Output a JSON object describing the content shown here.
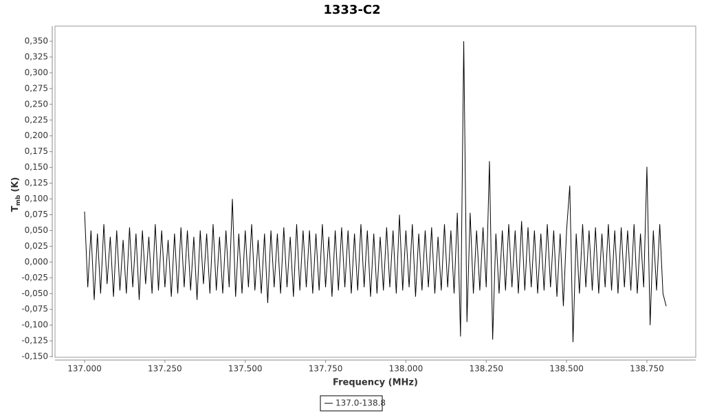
{
  "chart_data": {
    "type": "line",
    "title": "1333-C2",
    "x_label": "Frequency (MHz)",
    "y_label": "T",
    "y_label_sub": "mb",
    "y_label_unit": "(K)",
    "xlim": [
      136.908,
      138.902
    ],
    "ylim": [
      -0.151,
      0.374
    ],
    "xticks": [
      {
        "value": 137,
        "label": "137.000"
      },
      {
        "value": 137.25,
        "label": "137.250"
      },
      {
        "value": 137.5,
        "label": "137.500"
      },
      {
        "value": 137.75,
        "label": "137.750"
      },
      {
        "value": 138,
        "label": "138.000"
      },
      {
        "value": 138.25,
        "label": "138.250"
      },
      {
        "value": 138.5,
        "label": "138.500"
      },
      {
        "value": 138.75,
        "label": "138.750"
      }
    ],
    "yticks": [
      {
        "value": -0.15,
        "label": "-0,150"
      },
      {
        "value": -0.125,
        "label": "-0,125"
      },
      {
        "value": -0.1,
        "label": "-0,100"
      },
      {
        "value": -0.075,
        "label": "-0,075"
      },
      {
        "value": -0.05,
        "label": "-0,050"
      },
      {
        "value": -0.025,
        "label": "-0,025"
      },
      {
        "value": 0,
        "label": "0,000"
      },
      {
        "value": 0.025,
        "label": "0,025"
      },
      {
        "value": 0.05,
        "label": "0,050"
      },
      {
        "value": 0.075,
        "label": "0,075"
      },
      {
        "value": 0.1,
        "label": "0,100"
      },
      {
        "value": 0.125,
        "label": "0,125"
      },
      {
        "value": 0.15,
        "label": "0,150"
      },
      {
        "value": 0.175,
        "label": "0,175"
      },
      {
        "value": 0.2,
        "label": "0,200"
      },
      {
        "value": 0.225,
        "label": "0,225"
      },
      {
        "value": 0.25,
        "label": "0,250"
      },
      {
        "value": 0.275,
        "label": "0,275"
      },
      {
        "value": 0.3,
        "label": "0,300"
      },
      {
        "value": 0.325,
        "label": "0,325"
      },
      {
        "value": 0.35,
        "label": "0,350"
      }
    ],
    "grid": false,
    "x": [
      137,
      137.01,
      137.02,
      137.03,
      137.04,
      137.05,
      137.06,
      137.07,
      137.08,
      137.09,
      137.1,
      137.11,
      137.12,
      137.13,
      137.14,
      137.15,
      137.16,
      137.17,
      137.18,
      137.19,
      137.2,
      137.21,
      137.22,
      137.23,
      137.24,
      137.25,
      137.26,
      137.27,
      137.28,
      137.29,
      137.3,
      137.31,
      137.32,
      137.33,
      137.34,
      137.35,
      137.36,
      137.37,
      137.38,
      137.39,
      137.4,
      137.41,
      137.42,
      137.43,
      137.44,
      137.45,
      137.46,
      137.47,
      137.48,
      137.49,
      137.5,
      137.51,
      137.52,
      137.53,
      137.54,
      137.55,
      137.56,
      137.57,
      137.58,
      137.59,
      137.6,
      137.61,
      137.62,
      137.63,
      137.64,
      137.65,
      137.66,
      137.67,
      137.68,
      137.69,
      137.7,
      137.71,
      137.72,
      137.73,
      137.74,
      137.75,
      137.76,
      137.77,
      137.78,
      137.79,
      137.8,
      137.81,
      137.82,
      137.83,
      137.84,
      137.85,
      137.86,
      137.87,
      137.88,
      137.89,
      137.9,
      137.91,
      137.92,
      137.93,
      137.94,
      137.95,
      137.96,
      137.97,
      137.98,
      137.99,
      138,
      138.01,
      138.02,
      138.03,
      138.04,
      138.05,
      138.06,
      138.07,
      138.08,
      138.09,
      138.1,
      138.11,
      138.12,
      138.13,
      138.14,
      138.15,
      138.16,
      138.17,
      138.18,
      138.19,
      138.2,
      138.21,
      138.22,
      138.23,
      138.24,
      138.25,
      138.26,
      138.27,
      138.28,
      138.29,
      138.3,
      138.31,
      138.32,
      138.33,
      138.34,
      138.35,
      138.36,
      138.37,
      138.38,
      138.39,
      138.4,
      138.41,
      138.42,
      138.43,
      138.44,
      138.45,
      138.46,
      138.47,
      138.48,
      138.49,
      138.5,
      138.51,
      138.52,
      138.53,
      138.54,
      138.55,
      138.56,
      138.57,
      138.58,
      138.59,
      138.6,
      138.61,
      138.62,
      138.63,
      138.64,
      138.65,
      138.66,
      138.67,
      138.68,
      138.69,
      138.7,
      138.71,
      138.72,
      138.73,
      138.74,
      138.75,
      138.76,
      138.77,
      138.78,
      138.79,
      138.8,
      138.81
    ],
    "series": [
      {
        "name": "137.0-138.8",
        "color": "#000000",
        "values": [
          0.08,
          -0.04,
          0.05,
          -0.06,
          0.045,
          -0.05,
          0.06,
          -0.035,
          0.04,
          -0.055,
          0.05,
          -0.045,
          0.035,
          -0.05,
          0.055,
          -0.04,
          0.045,
          -0.06,
          0.05,
          -0.035,
          0.04,
          -0.05,
          0.06,
          -0.045,
          0.05,
          -0.04,
          0.035,
          -0.055,
          0.045,
          -0.05,
          0.055,
          -0.04,
          0.05,
          -0.045,
          0.04,
          -0.06,
          0.05,
          -0.035,
          0.045,
          -0.05,
          0.06,
          -0.045,
          0.04,
          -0.05,
          0.05,
          -0.04,
          0.1,
          -0.055,
          0.045,
          -0.05,
          0.05,
          -0.04,
          0.06,
          -0.045,
          0.035,
          -0.05,
          0.045,
          -0.065,
          0.05,
          -0.04,
          0.045,
          -0.05,
          0.055,
          -0.04,
          0.04,
          -0.055,
          0.06,
          -0.045,
          0.05,
          -0.04,
          0.05,
          -0.05,
          0.045,
          -0.045,
          0.06,
          -0.04,
          0.04,
          -0.055,
          0.05,
          -0.045,
          0.055,
          -0.04,
          0.05,
          -0.05,
          0.045,
          -0.045,
          0.06,
          -0.04,
          0.05,
          -0.055,
          0.045,
          -0.05,
          0.04,
          -0.045,
          0.055,
          -0.04,
          0.05,
          -0.05,
          0.075,
          -0.045,
          0.05,
          -0.04,
          0.06,
          -0.055,
          0.045,
          -0.045,
          0.05,
          -0.04,
          0.055,
          -0.05,
          0.04,
          -0.045,
          0.06,
          -0.04,
          0.05,
          -0.05,
          0.078,
          -0.118,
          0.35,
          -0.095,
          0.078,
          -0.05,
          0.05,
          -0.045,
          0.055,
          -0.04,
          0.16,
          -0.123,
          0.045,
          -0.05,
          0.05,
          -0.045,
          0.06,
          -0.04,
          0.05,
          -0.05,
          0.065,
          -0.045,
          0.055,
          -0.04,
          0.05,
          -0.05,
          0.045,
          -0.045,
          0.06,
          -0.04,
          0.05,
          -0.055,
          0.045,
          -0.07,
          0.05,
          0.121,
          -0.127,
          0.045,
          -0.05,
          0.06,
          -0.04,
          0.05,
          -0.045,
          0.055,
          -0.05,
          0.045,
          -0.04,
          0.06,
          -0.045,
          0.05,
          -0.05,
          0.055,
          -0.04,
          0.05,
          -0.045,
          0.06,
          -0.05,
          0.045,
          -0.04,
          0.151,
          -0.1,
          0.05,
          -0.045,
          0.06,
          -0.05,
          -0.07
        ]
      }
    ]
  }
}
